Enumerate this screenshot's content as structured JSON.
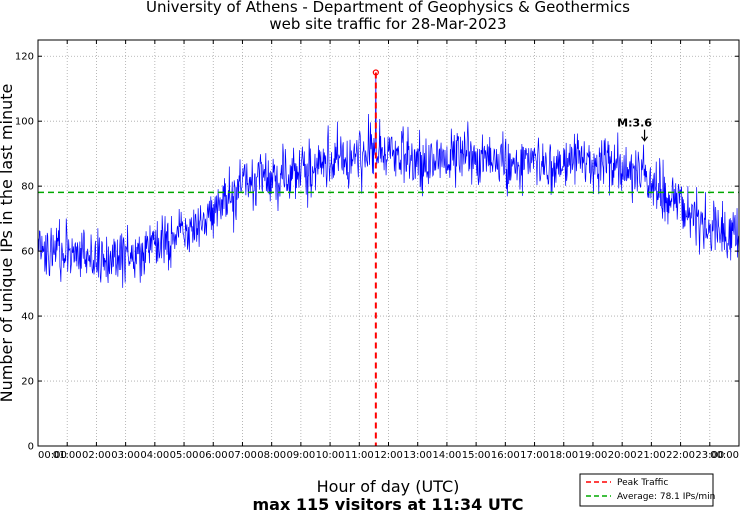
{
  "chart_data": {
    "type": "line",
    "title_line1": "University of Athens - Department of Geophysics & Geothermics",
    "title_line2": "web site traffic for 28-Mar-2023",
    "xlabel": "Hour of day (UTC)",
    "subtitle": "max 115 visitors at 11:34 UTC",
    "ylabel": "Number of unique IPs in the last minute",
    "ylim": [
      0,
      125
    ],
    "yticks": [
      "0",
      "20",
      "40",
      "60",
      "80",
      "100",
      "120"
    ],
    "xlim_minutes": [
      0,
      1440
    ],
    "xticks": [
      "00:00",
      "01:00",
      "02:00",
      "03:00",
      "04:00",
      "05:00",
      "06:00",
      "07:00",
      "08:00",
      "09:00",
      "10:00",
      "11:00",
      "12:00",
      "13:00",
      "14:00",
      "15:00",
      "16:00",
      "17:00",
      "18:00",
      "19:00",
      "20:00",
      "21:00",
      "22:00",
      "23:00",
      "00:00"
    ],
    "series": [
      {
        "name": "Traffic",
        "color": "#0000ff",
        "x_hours": [
          0,
          0.5,
          1,
          1.5,
          2,
          2.5,
          3,
          3.5,
          4,
          4.5,
          5,
          5.5,
          6,
          6.5,
          7,
          7.5,
          8,
          8.5,
          9,
          9.5,
          10,
          10.5,
          11,
          11.5,
          12,
          12.5,
          13,
          13.5,
          14,
          14.5,
          15,
          15.5,
          16,
          16.5,
          17,
          17.5,
          18,
          18.5,
          19,
          19.5,
          20,
          20.5,
          21,
          21.5,
          22,
          22.5,
          23,
          23.5,
          24
        ],
        "y_mean": [
          60,
          61,
          60,
          59,
          58,
          58,
          58,
          59,
          61,
          63,
          66,
          68,
          72,
          76,
          80,
          82,
          83,
          84,
          85,
          86,
          88,
          89,
          90,
          91,
          90,
          89,
          88,
          88,
          89,
          89,
          89,
          88,
          87,
          86,
          86,
          86,
          87,
          87,
          87,
          86,
          85,
          84,
          81,
          77,
          73,
          70,
          68,
          66,
          64
        ]
      }
    ],
    "peak": {
      "label": "Peak Traffic",
      "minute": 694,
      "value": 115,
      "color": "#ff0000"
    },
    "average": {
      "label": "Average: 78.1 IPs/min",
      "value": 78.1,
      "color": "#00aa00"
    },
    "annotation": {
      "text": "M:3.6",
      "minute": 1246,
      "arrow_to_value": 94
    }
  }
}
